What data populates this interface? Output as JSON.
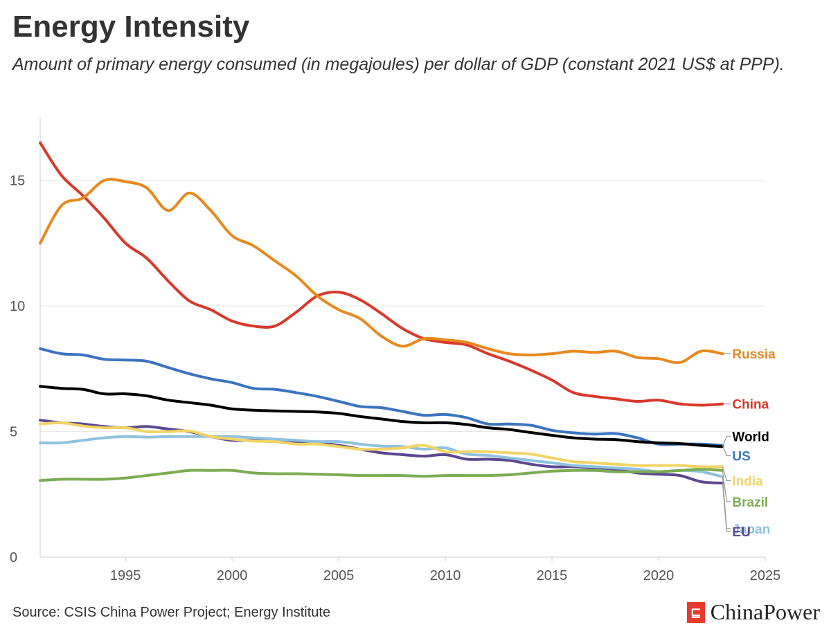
{
  "title": "Energy Intensity",
  "subtitle": "Amount of primary energy consumed (in megajoules) per dollar of GDP (constant 2021 US$ at PPP).",
  "source": "Source: CSIS China Power Project; Energy Institute",
  "brand": {
    "name": "ChinaPower",
    "logo_glyph": "⊑"
  },
  "colors": {
    "grid": "#e6e6e6",
    "axis": "#cccccc"
  },
  "chart_data": {
    "type": "line",
    "title": "Energy Intensity",
    "xlabel": "",
    "ylabel": "",
    "xlim": [
      1991,
      2025
    ],
    "ylim": [
      0,
      17.5
    ],
    "xticks": [
      1995,
      2000,
      2005,
      2010,
      2015,
      2020,
      2025
    ],
    "yticks": [
      0,
      5,
      10,
      15
    ],
    "x": [
      1991,
      1992,
      1993,
      1994,
      1995,
      1996,
      1997,
      1998,
      1999,
      2000,
      2001,
      2002,
      2003,
      2004,
      2005,
      2006,
      2007,
      2008,
      2009,
      2010,
      2011,
      2012,
      2013,
      2014,
      2015,
      2016,
      2017,
      2018,
      2019,
      2020,
      2021,
      2022,
      2023
    ],
    "series": [
      {
        "name": "Russia",
        "color": "#e8891e",
        "values": [
          12.5,
          14.0,
          14.3,
          15.0,
          14.95,
          14.7,
          13.8,
          14.5,
          13.8,
          12.8,
          12.4,
          11.8,
          11.2,
          10.4,
          9.85,
          9.5,
          8.8,
          8.4,
          8.7,
          8.65,
          8.55,
          8.3,
          8.1,
          8.05,
          8.1,
          8.2,
          8.15,
          8.2,
          7.95,
          7.9,
          7.75,
          8.2,
          8.1
        ],
        "label_offset": 0
      },
      {
        "name": "China",
        "color": "#d9392b",
        "values": [
          16.5,
          15.2,
          14.4,
          13.5,
          12.5,
          11.9,
          11.0,
          10.2,
          9.85,
          9.4,
          9.2,
          9.2,
          9.75,
          10.4,
          10.55,
          10.25,
          9.7,
          9.1,
          8.7,
          8.55,
          8.45,
          8.1,
          7.8,
          7.45,
          7.05,
          6.55,
          6.4,
          6.3,
          6.2,
          6.25,
          6.1,
          6.05,
          6.1
        ],
        "label_offset": 0
      },
      {
        "name": "World",
        "color": "#000000",
        "values": [
          6.8,
          6.72,
          6.68,
          6.5,
          6.5,
          6.42,
          6.25,
          6.15,
          6.05,
          5.9,
          5.85,
          5.82,
          5.8,
          5.78,
          5.72,
          5.6,
          5.5,
          5.4,
          5.35,
          5.35,
          5.28,
          5.15,
          5.08,
          4.96,
          4.85,
          4.75,
          4.7,
          4.68,
          4.6,
          4.55,
          4.52,
          4.45,
          4.4
        ],
        "label_offset": -15
      },
      {
        "name": "US",
        "color": "#3b74c0",
        "values": [
          8.3,
          8.1,
          8.05,
          7.88,
          7.85,
          7.8,
          7.55,
          7.3,
          7.1,
          6.95,
          6.72,
          6.68,
          6.55,
          6.4,
          6.2,
          6.0,
          5.95,
          5.8,
          5.65,
          5.68,
          5.55,
          5.3,
          5.3,
          5.25,
          5.05,
          4.95,
          4.9,
          4.92,
          4.75,
          4.5,
          4.5,
          4.5,
          4.45
        ],
        "label_offset": 15
      },
      {
        "name": "India",
        "color": "#f2d466",
        "values": [
          5.3,
          5.35,
          5.22,
          5.15,
          5.15,
          5.0,
          5.0,
          5.02,
          4.8,
          4.7,
          4.62,
          4.6,
          4.5,
          4.5,
          4.4,
          4.3,
          4.3,
          4.35,
          4.45,
          4.2,
          4.2,
          4.2,
          4.15,
          4.1,
          3.95,
          3.8,
          3.75,
          3.7,
          3.65,
          3.65,
          3.65,
          3.6,
          3.6
        ],
        "label_offset": 20
      },
      {
        "name": "Brazil",
        "color": "#7cac52",
        "values": [
          3.05,
          3.1,
          3.1,
          3.1,
          3.15,
          3.25,
          3.35,
          3.45,
          3.45,
          3.45,
          3.35,
          3.32,
          3.32,
          3.3,
          3.28,
          3.25,
          3.25,
          3.25,
          3.22,
          3.25,
          3.25,
          3.25,
          3.28,
          3.35,
          3.42,
          3.45,
          3.45,
          3.4,
          3.4,
          3.4,
          3.45,
          3.5,
          3.45
        ],
        "label_offset": 45
      },
      {
        "name": "Japan",
        "color": "#8fc2e0",
        "values": [
          4.55,
          4.55,
          4.65,
          4.75,
          4.8,
          4.78,
          4.8,
          4.8,
          4.8,
          4.8,
          4.75,
          4.7,
          4.65,
          4.6,
          4.6,
          4.5,
          4.42,
          4.4,
          4.3,
          4.35,
          4.1,
          4.05,
          3.95,
          3.85,
          3.75,
          3.65,
          3.6,
          3.55,
          3.5,
          3.4,
          3.45,
          3.4,
          3.2
        ],
        "label_offset": 75
      },
      {
        "name": "EU",
        "color": "#5c4891",
        "values": [
          5.45,
          5.35,
          5.3,
          5.2,
          5.15,
          5.2,
          5.1,
          5.0,
          4.8,
          4.65,
          4.65,
          4.6,
          4.6,
          4.55,
          4.45,
          4.3,
          4.15,
          4.08,
          4.02,
          4.08,
          3.9,
          3.9,
          3.85,
          3.7,
          3.6,
          3.6,
          3.55,
          3.5,
          3.35,
          3.3,
          3.25,
          3.0,
          2.95
        ],
        "label_offset": 70
      }
    ]
  }
}
